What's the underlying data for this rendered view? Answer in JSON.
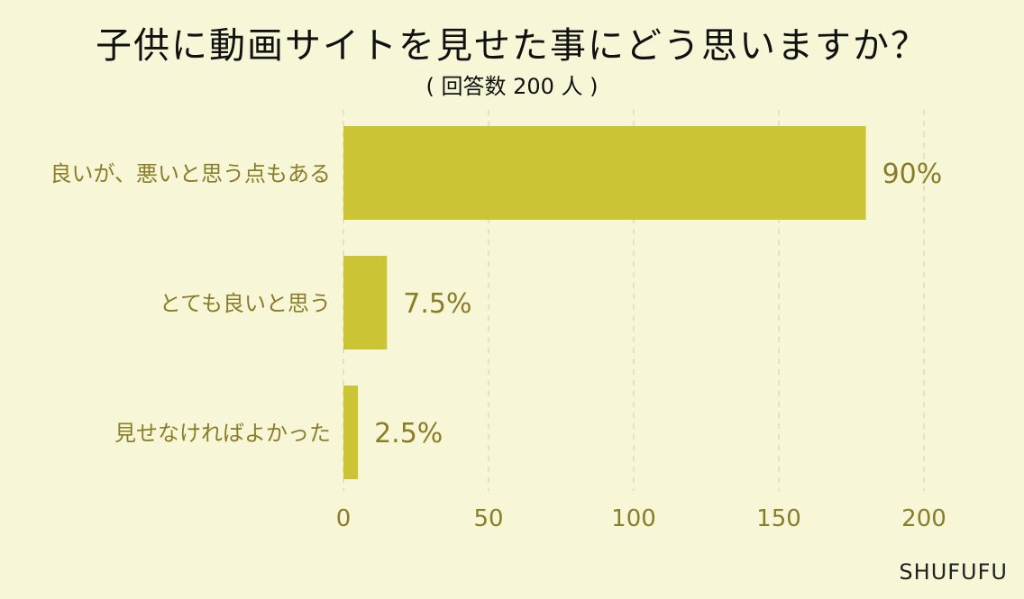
{
  "chart_data": {
    "type": "bar",
    "orientation": "horizontal",
    "title": "子供に動画サイトを見せた事にどう思いますか？",
    "subtitle": "( 回答数 200 人 )",
    "categories": [
      "良いが、悪いと思う点もある",
      "とても良いと思う",
      "見せなければよかった"
    ],
    "values": [
      180,
      15,
      5
    ],
    "value_labels": [
      "90%",
      "7.5%",
      "2.5%"
    ],
    "xlim": [
      0,
      200
    ],
    "xticks": [
      0,
      50,
      100,
      150,
      200
    ],
    "grid": "vertical dashed",
    "bar_color": "#cbc535",
    "text_color": "#8a7d2a",
    "background": "#f7f7d8"
  },
  "brand": "SHUFUFU"
}
